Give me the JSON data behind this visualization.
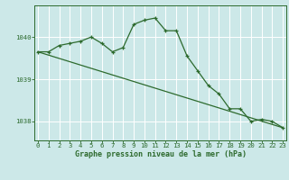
{
  "line1_x": [
    0,
    1,
    2,
    3,
    4,
    5,
    6,
    7,
    8,
    9,
    10,
    11,
    12,
    13,
    14,
    15,
    16,
    17,
    18,
    19,
    20,
    21,
    22,
    23
  ],
  "line1_y": [
    1039.65,
    1039.65,
    1039.8,
    1039.85,
    1039.9,
    1040.0,
    1039.85,
    1039.65,
    1039.75,
    1040.3,
    1040.4,
    1040.45,
    1040.15,
    1040.15,
    1039.55,
    1039.2,
    1038.85,
    1038.65,
    1038.3,
    1038.3,
    1038.0,
    1038.05,
    1038.0,
    1037.85
  ],
  "trend_x": [
    0,
    23
  ],
  "trend_y": [
    1039.65,
    1037.85
  ],
  "line_color": "#2d6a2d",
  "bg_color": "#cce8e8",
  "grid_color": "#ffffff",
  "xlabel": "Graphe pression niveau de la mer (hPa)",
  "ylim_min": 1037.55,
  "ylim_max": 1040.75,
  "yticks": [
    1038,
    1039,
    1040
  ],
  "xticks": [
    0,
    1,
    2,
    3,
    4,
    5,
    6,
    7,
    8,
    9,
    10,
    11,
    12,
    13,
    14,
    15,
    16,
    17,
    18,
    19,
    20,
    21,
    22,
    23
  ],
  "xlabel_fontsize": 6.0,
  "tick_fontsize": 5.2,
  "linewidth": 0.9,
  "marker_size": 3.5
}
